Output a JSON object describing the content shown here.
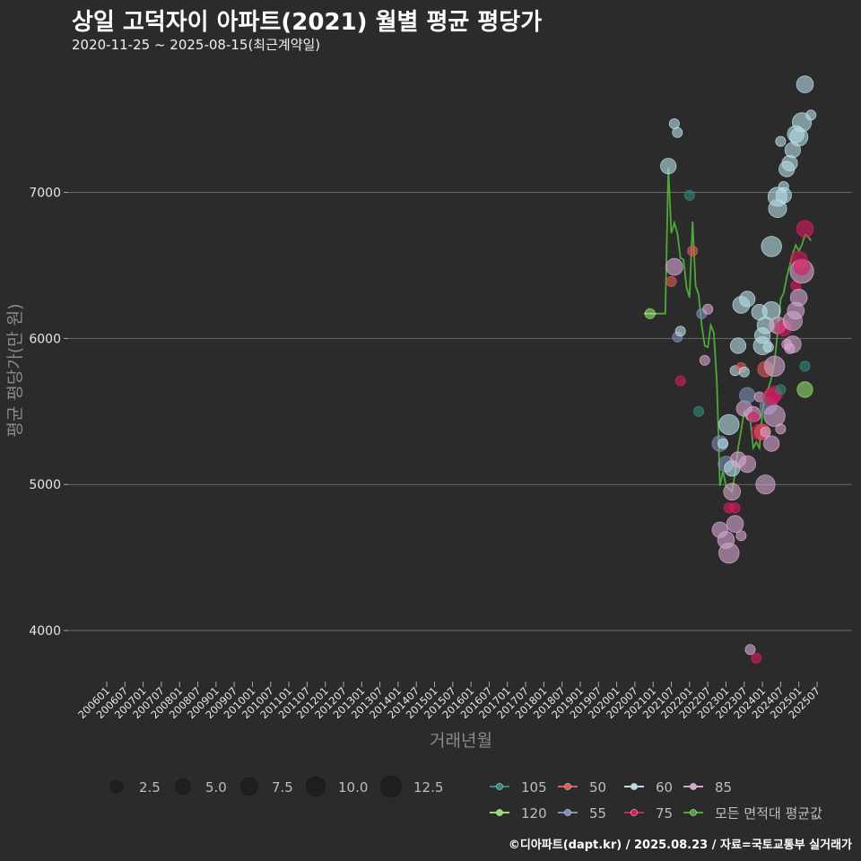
{
  "header": {
    "title": "상일 고덕자이 아파트(2021) 월별 평균 평당가",
    "subtitle": "2020-11-25 ~ 2025-08-15(최근계약일)"
  },
  "footer": {
    "credit": "©디아파트(dapt.kr) / 2025.08.23 / 자료=국토교통부 실거래가"
  },
  "colors": {
    "background": "#2b2b2c",
    "grid": "#6a6a6a",
    "105": "#2e8b7a",
    "120": "#90e070",
    "50": "#e05a5a",
    "55": "#7f8fb8",
    "60": "#b8dde6",
    "75": "#d81b60",
    "85": "#d7a6d0",
    "avg": "#4ea83a"
  },
  "chart_data": {
    "type": "scatter",
    "title": "상일 고덕자이 아파트(2021) 월별 평균 평당가",
    "xlabel": "거래년월",
    "ylabel": "평균 평당가(만 원)",
    "ylim": [
      3650,
      7900
    ],
    "y_ticks": [
      4000,
      5000,
      6000,
      7000
    ],
    "x_ticks": [
      "200601",
      "200607",
      "200701",
      "200707",
      "200801",
      "200807",
      "200901",
      "200907",
      "201001",
      "201007",
      "201101",
      "201107",
      "201201",
      "201207",
      "201301",
      "201307",
      "201401",
      "201407",
      "201501",
      "201507",
      "201601",
      "201607",
      "201701",
      "201707",
      "201801",
      "201807",
      "201901",
      "201907",
      "202001",
      "202007",
      "202101",
      "202107",
      "202201",
      "202207",
      "202301",
      "202307",
      "202401",
      "202407",
      "202501",
      "202507"
    ],
    "size_legend": [
      2.5,
      5.0,
      7.5,
      10.0,
      12.5
    ],
    "color_legend": [
      {
        "key": "105",
        "label": "105"
      },
      {
        "key": "50",
        "label": "50"
      },
      {
        "key": "60",
        "label": "60"
      },
      {
        "key": "85",
        "label": "85"
      },
      {
        "key": "120",
        "label": "120"
      },
      {
        "key": "55",
        "label": "55"
      },
      {
        "key": "75",
        "label": "75"
      },
      {
        "key": "avg",
        "label": "모든 면적대 평균값"
      }
    ],
    "points": [
      {
        "m": "202012",
        "v": 6170,
        "s": 1,
        "g": "120"
      },
      {
        "m": "202106",
        "v": 7180,
        "s": 4,
        "g": "60"
      },
      {
        "m": "202107",
        "v": 6390,
        "s": 1,
        "g": "50"
      },
      {
        "m": "202108",
        "v": 6490,
        "s": 5,
        "g": "85"
      },
      {
        "m": "202108",
        "v": 7470,
        "s": 1,
        "g": "60"
      },
      {
        "m": "202109",
        "v": 7410,
        "s": 1,
        "g": "60"
      },
      {
        "m": "202109",
        "v": 6010,
        "s": 1,
        "g": "55"
      },
      {
        "m": "202110",
        "v": 5710,
        "s": 1,
        "g": "75"
      },
      {
        "m": "202110",
        "v": 6050,
        "s": 1,
        "g": "60"
      },
      {
        "m": "202201",
        "v": 6980,
        "s": 1,
        "g": "105"
      },
      {
        "m": "202202",
        "v": 6600,
        "s": 1,
        "g": "50"
      },
      {
        "m": "202204",
        "v": 5500,
        "s": 1,
        "g": "105"
      },
      {
        "m": "202205",
        "v": 6170,
        "s": 1,
        "g": "55"
      },
      {
        "m": "202206",
        "v": 5850,
        "s": 1,
        "g": "85"
      },
      {
        "m": "202207",
        "v": 6200,
        "s": 1,
        "g": "85"
      },
      {
        "m": "202211",
        "v": 5280,
        "s": 4,
        "g": "55"
      },
      {
        "m": "202211",
        "v": 4690,
        "s": 4,
        "g": "85"
      },
      {
        "m": "202212",
        "v": 5280,
        "s": 1,
        "g": "60"
      },
      {
        "m": "202301",
        "v": 5140,
        "s": 4,
        "g": "55"
      },
      {
        "m": "202301",
        "v": 4620,
        "s": 5,
        "g": "85"
      },
      {
        "m": "202302",
        "v": 5410,
        "s": 8,
        "g": "60"
      },
      {
        "m": "202302",
        "v": 4530,
        "s": 8,
        "g": "85"
      },
      {
        "m": "202302",
        "v": 4840,
        "s": 1,
        "g": "75"
      },
      {
        "m": "202303",
        "v": 5110,
        "s": 4,
        "g": "60"
      },
      {
        "m": "202303",
        "v": 4950,
        "s": 5,
        "g": "85"
      },
      {
        "m": "202304",
        "v": 4730,
        "s": 5,
        "g": "85"
      },
      {
        "m": "202304",
        "v": 5780,
        "s": 1,
        "g": "60"
      },
      {
        "m": "202304",
        "v": 4840,
        "s": 1,
        "g": "75"
      },
      {
        "m": "202305",
        "v": 5950,
        "s": 4,
        "g": "60"
      },
      {
        "m": "202305",
        "v": 5170,
        "s": 4,
        "g": "85"
      },
      {
        "m": "202306",
        "v": 6230,
        "s": 5,
        "g": "60"
      },
      {
        "m": "202306",
        "v": 5800,
        "s": 1,
        "g": "50"
      },
      {
        "m": "202306",
        "v": 4650,
        "s": 1,
        "g": "85"
      },
      {
        "m": "202307",
        "v": 5520,
        "s": 4,
        "g": "85"
      },
      {
        "m": "202307",
        "v": 5770,
        "s": 1,
        "g": "60"
      },
      {
        "m": "202308",
        "v": 6270,
        "s": 4,
        "g": "60"
      },
      {
        "m": "202308",
        "v": 5610,
        "s": 4,
        "g": "55"
      },
      {
        "m": "202308",
        "v": 5140,
        "s": 5,
        "g": "85"
      },
      {
        "m": "202309",
        "v": 3870,
        "s": 1,
        "g": "85"
      },
      {
        "m": "202310",
        "v": 5480,
        "s": 4,
        "g": "85"
      },
      {
        "m": "202310",
        "v": 5460,
        "s": 1,
        "g": "75"
      },
      {
        "m": "202311",
        "v": 3810,
        "s": 1,
        "g": "75"
      },
      {
        "m": "202312",
        "v": 6180,
        "s": 4,
        "g": "60"
      },
      {
        "m": "202312",
        "v": 5360,
        "s": 4,
        "g": "75"
      },
      {
        "m": "202312",
        "v": 5600,
        "s": 1,
        "g": "85"
      },
      {
        "m": "202401",
        "v": 5950,
        "s": 6,
        "g": "60"
      },
      {
        "m": "202401",
        "v": 6020,
        "s": 4,
        "g": "60"
      },
      {
        "m": "202401",
        "v": 5360,
        "s": 4,
        "g": "50"
      },
      {
        "m": "202402",
        "v": 6090,
        "s": 5,
        "g": "60"
      },
      {
        "m": "202402",
        "v": 5790,
        "s": 4,
        "g": "50"
      },
      {
        "m": "202402",
        "v": 5000,
        "s": 7,
        "g": "85"
      },
      {
        "m": "202402",
        "v": 5360,
        "s": 1,
        "g": "85"
      },
      {
        "m": "202403",
        "v": 5540,
        "s": 5,
        "g": "55"
      },
      {
        "m": "202403",
        "v": 5940,
        "s": 1,
        "g": "60"
      },
      {
        "m": "202404",
        "v": 6630,
        "s": 8,
        "g": "60"
      },
      {
        "m": "202404",
        "v": 6190,
        "s": 6,
        "g": "60"
      },
      {
        "m": "202404",
        "v": 5600,
        "s": 5,
        "g": "75"
      },
      {
        "m": "202404",
        "v": 5280,
        "s": 4,
        "g": "85"
      },
      {
        "m": "202405",
        "v": 5810,
        "s": 8,
        "g": "85"
      },
      {
        "m": "202405",
        "v": 5470,
        "s": 9,
        "g": "85"
      },
      {
        "m": "202405",
        "v": 5620,
        "s": 4,
        "g": "75"
      },
      {
        "m": "202406",
        "v": 6970,
        "s": 7,
        "g": "60"
      },
      {
        "m": "202406",
        "v": 6890,
        "s": 6,
        "g": "60"
      },
      {
        "m": "202406",
        "v": 6090,
        "s": 5,
        "g": "85"
      },
      {
        "m": "202407",
        "v": 7350,
        "s": 1,
        "g": "60"
      },
      {
        "m": "202407",
        "v": 5650,
        "s": 1,
        "g": "105"
      },
      {
        "m": "202407",
        "v": 5380,
        "s": 1,
        "g": "85"
      },
      {
        "m": "202408",
        "v": 7040,
        "s": 1,
        "g": "60"
      },
      {
        "m": "202408",
        "v": 6980,
        "s": 4,
        "g": "60"
      },
      {
        "m": "202408",
        "v": 6070,
        "s": 4,
        "g": "75"
      },
      {
        "m": "202409",
        "v": 7160,
        "s": 4,
        "g": "60"
      },
      {
        "m": "202409",
        "v": 5960,
        "s": 1,
        "g": "85"
      },
      {
        "m": "202410",
        "v": 7200,
        "s": 4,
        "g": "60"
      },
      {
        "m": "202410",
        "v": 5930,
        "s": 1,
        "g": "85"
      },
      {
        "m": "202411",
        "v": 7290,
        "s": 4,
        "g": "60"
      },
      {
        "m": "202411",
        "v": 6120,
        "s": 7,
        "g": "85"
      },
      {
        "m": "202411",
        "v": 5960,
        "s": 5,
        "g": "85"
      },
      {
        "m": "202412",
        "v": 7400,
        "s": 5,
        "g": "60"
      },
      {
        "m": "202412",
        "v": 6360,
        "s": 1,
        "g": "75"
      },
      {
        "m": "202412",
        "v": 6190,
        "s": 5,
        "g": "85"
      },
      {
        "m": "202501",
        "v": 7380,
        "s": 6,
        "g": "60"
      },
      {
        "m": "202501",
        "v": 6540,
        "s": 5,
        "g": "75"
      },
      {
        "m": "202501",
        "v": 6280,
        "s": 5,
        "g": "85"
      },
      {
        "m": "202502",
        "v": 7480,
        "s": 7,
        "g": "60"
      },
      {
        "m": "202502",
        "v": 6460,
        "s": 12,
        "g": "85"
      },
      {
        "m": "202502",
        "v": 6490,
        "s": 4,
        "g": "75"
      },
      {
        "m": "202503",
        "v": 7740,
        "s": 5,
        "g": "60"
      },
      {
        "m": "202503",
        "v": 6750,
        "s": 5,
        "g": "75"
      },
      {
        "m": "202503",
        "v": 5650,
        "s": 4,
        "g": "120"
      },
      {
        "m": "202503",
        "v": 5810,
        "s": 1,
        "g": "105"
      },
      {
        "m": "202505",
        "v": 7530,
        "s": 1,
        "g": "60"
      }
    ],
    "series": [
      {
        "name": "모든 면적대 평균값",
        "x": [
          "202012",
          "202101",
          "202102",
          "202103",
          "202104",
          "202105",
          "202106",
          "202107",
          "202108",
          "202109",
          "202110",
          "202111",
          "202112",
          "202201",
          "202202",
          "202203",
          "202204",
          "202205",
          "202206",
          "202207",
          "202208",
          "202209",
          "202210",
          "202211",
          "202212",
          "202301",
          "202302",
          "202303",
          "202304",
          "202305",
          "202306",
          "202307",
          "202308",
          "202309",
          "202310",
          "202311",
          "202312",
          "202401",
          "202402",
          "202403",
          "202404",
          "202405",
          "202406",
          "202407",
          "202408",
          "202409",
          "202410",
          "202411",
          "202412",
          "202501",
          "202502",
          "202503",
          "202504",
          "202505"
        ],
        "values": [
          6170,
          6170,
          6170,
          6170,
          6170,
          6170,
          7170,
          6720,
          6790,
          6720,
          6550,
          6540,
          6350,
          6280,
          6800,
          6360,
          6300,
          6090,
          5950,
          5940,
          6090,
          6040,
          5700,
          4990,
          5090,
          4990,
          4970,
          4950,
          5080,
          5250,
          5370,
          5500,
          5450,
          5450,
          5250,
          5290,
          5250,
          5490,
          5630,
          5660,
          5730,
          5840,
          6040,
          6270,
          6310,
          6420,
          6500,
          6580,
          6640,
          6600,
          6640,
          6710,
          6700,
          6670
        ]
      }
    ]
  }
}
